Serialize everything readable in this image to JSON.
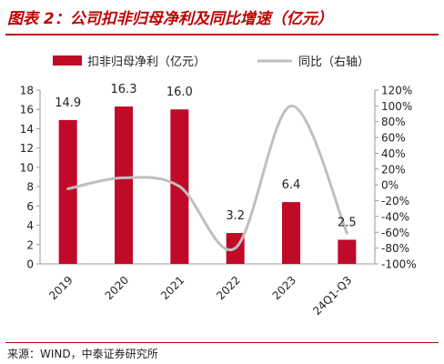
{
  "header": {
    "title": "图表 2：公司扣非归母净利及同比增速（亿元）"
  },
  "footer": {
    "source": "来源：WIND，中泰证券研究所"
  },
  "chart_data": {
    "type": "bar",
    "categories": [
      "2019",
      "2020",
      "2021",
      "2022",
      "2023",
      "24Q1-Q3"
    ],
    "series": [
      {
        "name": "扣非归母净利（亿元）",
        "type": "bar",
        "axis": "left",
        "values": [
          14.9,
          16.3,
          16.0,
          3.2,
          6.4,
          2.5
        ],
        "color": "#c00a28"
      },
      {
        "name": "同比（右轴）",
        "type": "line",
        "axis": "right",
        "values": [
          -0.05,
          0.09,
          -0.02,
          -0.8,
          1.0,
          -0.61
        ],
        "color": "#bfbfbf"
      }
    ],
    "y_left": {
      "min": 0,
      "max": 18,
      "step": 2,
      "ticks": [
        "0",
        "2",
        "4",
        "6",
        "8",
        "10",
        "12",
        "14",
        "16",
        "18"
      ]
    },
    "y_right": {
      "min": -1.0,
      "max": 1.2,
      "step": 0.2,
      "ticks": [
        "-100%",
        "-80%",
        "-60%",
        "-40%",
        "-20%",
        "0%",
        "20%",
        "40%",
        "60%",
        "80%",
        "100%",
        "120%"
      ]
    },
    "data_labels": [
      "14.9",
      "16.3",
      "16.0",
      "3.2",
      "6.4",
      "2.5"
    ],
    "legend_position": "top",
    "grid": false
  }
}
